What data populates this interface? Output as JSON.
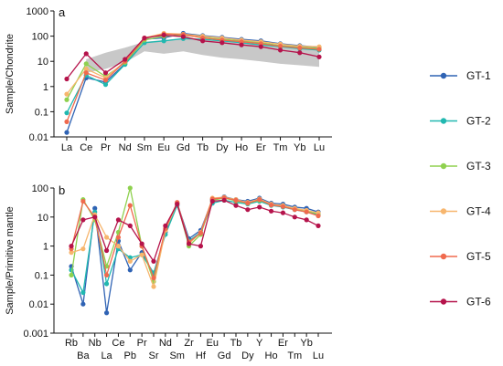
{
  "chart_data": [
    {
      "panel": "a",
      "type": "line",
      "ylabel": "Sample/Chondrite",
      "yscale": "log",
      "ylim": [
        0.01,
        1000
      ],
      "y_ticks": [
        "0.01",
        "0.1",
        "1",
        "10",
        "100",
        "1000"
      ],
      "x_ticks": [
        "La",
        "Ce",
        "Pr",
        "Nd",
        "Sm",
        "Eu",
        "Gd",
        "Tb",
        "Dy",
        "Ho",
        "Er",
        "Tm",
        "Yb",
        "Lu"
      ],
      "band": {
        "lower": [
          null,
          3.5,
          5,
          9,
          25,
          20,
          25,
          18,
          14,
          12,
          10,
          8,
          7,
          6
        ],
        "upper": [
          null,
          12,
          22,
          35,
          60,
          70,
          80,
          70,
          65,
          55,
          50,
          45,
          40,
          40
        ]
      },
      "series": [
        {
          "name": "GT-1",
          "values": [
            0.015,
            2.2,
            1.5,
            8,
            75,
            85,
            130,
            105,
            90,
            75,
            65,
            50,
            42,
            36
          ]
        },
        {
          "name": "GT-2",
          "values": [
            0.09,
            2.8,
            1.2,
            7.5,
            55,
            65,
            80,
            75,
            65,
            55,
            45,
            38,
            32,
            28
          ]
        },
        {
          "name": "GT-3",
          "values": [
            0.3,
            8,
            2.5,
            9,
            70,
            100,
            110,
            90,
            75,
            65,
            55,
            42,
            36,
            33
          ]
        },
        {
          "name": "GT-4",
          "values": [
            0.5,
            5,
            2.2,
            10,
            85,
            130,
            120,
            100,
            85,
            70,
            60,
            48,
            40,
            38
          ]
        },
        {
          "name": "GT-5",
          "values": [
            0.04,
            3.5,
            1.8,
            10,
            80,
            120,
            115,
            85,
            70,
            60,
            50,
            40,
            34,
            30
          ]
        },
        {
          "name": "GT-6",
          "values": [
            2,
            20,
            3.5,
            12,
            85,
            110,
            95,
            65,
            55,
            45,
            38,
            28,
            22,
            15
          ]
        }
      ]
    },
    {
      "panel": "b",
      "type": "line",
      "ylabel": "Sample/Primitive mantle",
      "yscale": "log",
      "ylim": [
        0.001,
        100
      ],
      "y_ticks": [
        "0.001",
        "0.01",
        "0.1",
        "1",
        "10",
        "100"
      ],
      "x_ticks": [
        "Rb",
        "Ba",
        "Nb",
        "La",
        "Ce",
        "Pb",
        "Pr",
        "Sr",
        "Nd",
        "Sm",
        "Zr",
        "Hf",
        "Eu",
        "Gd",
        "Tb",
        "Dy",
        "Y",
        "Ho",
        "Er",
        "Tm",
        "Yb",
        "Lu"
      ],
      "series": [
        {
          "name": "GT-1",
          "values": [
            0.2,
            0.01,
            20,
            0.005,
            1.5,
            0.15,
            0.6,
            0.1,
            3,
            30,
            1.8,
            3.5,
            40,
            50,
            40,
            35,
            45,
            30,
            28,
            22,
            20,
            15
          ]
        },
        {
          "name": "GT-2",
          "values": [
            0.15,
            0.025,
            15,
            0.05,
            0.8,
            0.4,
            0.5,
            0.12,
            2.5,
            25,
            1.5,
            3,
            30,
            38,
            32,
            28,
            35,
            25,
            22,
            18,
            15,
            12
          ]
        },
        {
          "name": "GT-3",
          "values": [
            0.1,
            40,
            8,
            0.2,
            3,
            100,
            1,
            0.06,
            3.5,
            30,
            1,
            2.5,
            38,
            45,
            36,
            30,
            38,
            27,
            24,
            19,
            16,
            13
          ]
        },
        {
          "name": "GT-4",
          "values": [
            0.6,
            0.8,
            12,
            2,
            1,
            0.3,
            0.5,
            0.04,
            3.5,
            30,
            1.2,
            3,
            45,
            48,
            40,
            32,
            42,
            28,
            25,
            20,
            17,
            14
          ]
        },
        {
          "name": "GT-5",
          "values": [
            0.8,
            35,
            10,
            0.1,
            2,
            25,
            1,
            0.08,
            4,
            32,
            1.4,
            2.8,
            42,
            46,
            38,
            30,
            40,
            26,
            23,
            18,
            15,
            11
          ]
        },
        {
          "name": "GT-6",
          "values": [
            1,
            8,
            10,
            0.7,
            8,
            5,
            1.2,
            0.3,
            5,
            28,
            1.2,
            1,
            35,
            38,
            25,
            18,
            22,
            16,
            14,
            10,
            8,
            5
          ]
        }
      ]
    }
  ],
  "legend": {
    "items": [
      {
        "name": "GT-1",
        "color": "#2f63b4"
      },
      {
        "name": "GT-2",
        "color": "#21b8b0"
      },
      {
        "name": "GT-3",
        "color": "#8fd14f"
      },
      {
        "name": "GT-4",
        "color": "#f7b66e"
      },
      {
        "name": "GT-5",
        "color": "#f06a4e"
      },
      {
        "name": "GT-6",
        "color": "#b5134b"
      }
    ]
  },
  "colors": {
    "band_fill": "#c8c8c8",
    "axis": "#111111"
  }
}
